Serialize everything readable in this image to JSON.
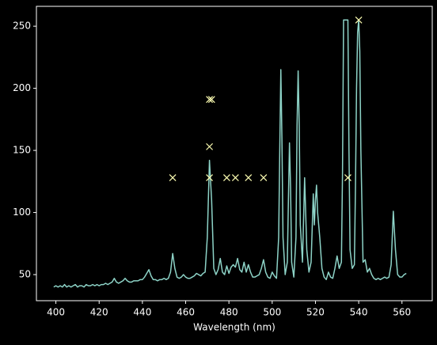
{
  "chart_data": {
    "type": "line",
    "xlabel": "Wavelength (nm)",
    "xlim": [
      391,
      574
    ],
    "ylim": [
      29,
      266
    ],
    "xticks": [
      400,
      420,
      440,
      460,
      480,
      500,
      520,
      540,
      560
    ],
    "yticks": [
      50,
      100,
      150,
      200,
      250
    ],
    "background": "#000000",
    "axis_color": "#ffffff",
    "series": [
      {
        "type": "line",
        "color": "#8dd3c7",
        "x": [
          399,
          400,
          401,
          402,
          403,
          404,
          405,
          406,
          407,
          408,
          409,
          410,
          411,
          412,
          413,
          414,
          415,
          416,
          417,
          418,
          419,
          420,
          421,
          422,
          423,
          424,
          425,
          426,
          427,
          428,
          429,
          430,
          431,
          432,
          433,
          434,
          435,
          436,
          437,
          438,
          439,
          440,
          441,
          442,
          443,
          444,
          445,
          446,
          447,
          448,
          449,
          450,
          451,
          452,
          453,
          454,
          455,
          456,
          457,
          458,
          459,
          460,
          461,
          462,
          463,
          464,
          465,
          466,
          467,
          468,
          469,
          470,
          471,
          472,
          473,
          474,
          475,
          476,
          477,
          478,
          479,
          480,
          481,
          482,
          483,
          484,
          485,
          486,
          487,
          488,
          489,
          490,
          491,
          492,
          493,
          494,
          495,
          496,
          497,
          498,
          499,
          500,
          501,
          502,
          503,
          503.5,
          504,
          504.5,
          505,
          506,
          507,
          507.5,
          508,
          508.5,
          509,
          510,
          511,
          511.5,
          512,
          512.5,
          513,
          514,
          515,
          516,
          517,
          518,
          519,
          519.5,
          520,
          520.5,
          521,
          522,
          523,
          524,
          525,
          526,
          527,
          528,
          529,
          530,
          531,
          532,
          532.5,
          533,
          534,
          535,
          535.5,
          536,
          537,
          538,
          538.5,
          539,
          539.5,
          540,
          540.5,
          541,
          542,
          543,
          544,
          545,
          546,
          547,
          548,
          549,
          550,
          551,
          552,
          553,
          554,
          555,
          556,
          557,
          558,
          559,
          560,
          561,
          562
        ],
        "values": [
          40,
          41,
          40,
          41,
          40,
          42,
          40,
          41,
          40,
          41,
          42,
          40,
          41,
          41,
          40,
          42,
          41,
          41,
          42,
          41,
          42,
          41,
          42,
          42,
          43,
          42,
          43,
          44,
          47,
          44,
          43,
          44,
          45,
          47,
          45,
          44,
          44,
          45,
          45,
          45,
          46,
          46,
          48,
          51,
          54,
          49,
          46,
          46,
          45,
          46,
          46,
          47,
          46,
          47,
          52,
          67,
          55,
          48,
          47,
          48,
          50,
          48,
          47,
          47,
          48,
          49,
          51,
          50,
          49,
          51,
          52,
          80,
          142,
          110,
          55,
          50,
          54,
          63,
          52,
          50,
          57,
          51,
          56,
          58,
          56,
          63,
          54,
          52,
          60,
          52,
          58,
          52,
          48,
          48,
          49,
          50,
          55,
          62,
          52,
          48,
          47,
          52,
          49,
          47,
          80,
          150,
          215,
          160,
          80,
          50,
          60,
          110,
          156,
          120,
          60,
          48,
          80,
          170,
          214,
          170,
          90,
          60,
          128,
          70,
          52,
          60,
          115,
          90,
          110,
          122,
          100,
          80,
          55,
          48,
          46,
          52,
          48,
          47,
          55,
          65,
          55,
          60,
          130,
          255,
          255,
          255,
          150,
          70,
          55,
          58,
          120,
          200,
          245,
          255,
          230,
          150,
          60,
          62,
          52,
          55,
          50,
          47,
          46,
          47,
          46,
          47,
          48,
          47,
          48,
          58,
          101,
          70,
          50,
          48,
          48,
          50,
          51
        ]
      },
      {
        "type": "scatter",
        "marker": "x",
        "color": "#feffb3",
        "x": [
          454,
          471,
          471,
          471,
          472,
          479,
          483,
          489,
          496,
          535,
          540
        ],
        "values": [
          128,
          128,
          153,
          191,
          191,
          128,
          128,
          128,
          128,
          128,
          255
        ]
      }
    ]
  }
}
